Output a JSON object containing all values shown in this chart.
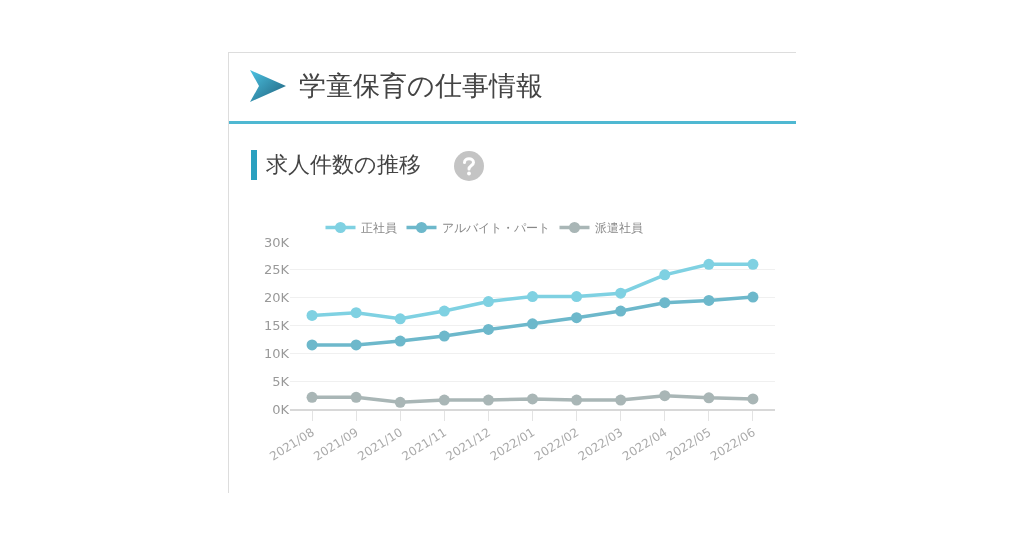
{
  "chart_data": {
    "type": "line",
    "title": "学童保育の仕事情報",
    "subtitle": "求人件数の推移",
    "categories": [
      "2021/08",
      "2021/09",
      "2021/10",
      "2021/11",
      "2021/12",
      "2022/01",
      "2022/02",
      "2022/03",
      "2022/04",
      "2022/05",
      "2022/06"
    ],
    "series": [
      {
        "name": "正社員",
        "color": "#7fd1e2",
        "values": [
          16800,
          17300,
          16200,
          17600,
          19300,
          20200,
          20200,
          20800,
          24100,
          26000,
          26000
        ]
      },
      {
        "name": "アルバイト・パート",
        "color": "#6db8cb",
        "values": [
          11500,
          11500,
          12200,
          13100,
          14300,
          15300,
          16400,
          17600,
          19100,
          19500,
          20100
        ]
      },
      {
        "name": "派遣社員",
        "color": "#a9b6b6",
        "values": [
          2100,
          2100,
          1200,
          1600,
          1600,
          1800,
          1600,
          1600,
          2400,
          2000,
          1800
        ]
      }
    ],
    "ylim": [
      0,
      30000
    ],
    "yticks": [
      {
        "value": 0,
        "label": "0K"
      },
      {
        "value": 5000,
        "label": "5K"
      },
      {
        "value": 10000,
        "label": "10K"
      },
      {
        "value": 15000,
        "label": "15K"
      },
      {
        "value": 20000,
        "label": "20K"
      },
      {
        "value": 25000,
        "label": "25K"
      },
      {
        "value": 30000,
        "label": "30K"
      }
    ],
    "grid": "y",
    "legend": "top",
    "marker": "circle",
    "line_style": "solid"
  }
}
